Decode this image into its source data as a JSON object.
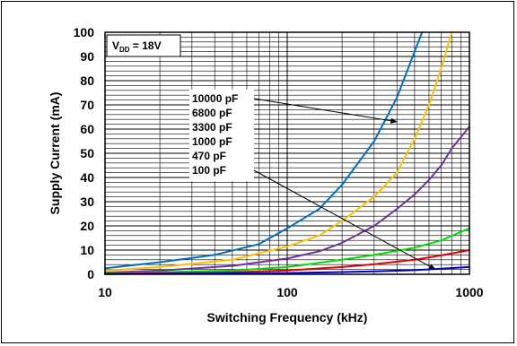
{
  "chart_data": {
    "type": "line",
    "title": "",
    "xlabel": "Switching Frequency (kHz)",
    "ylabel": "Supply Current (mA)",
    "xscale": "log",
    "xlim": [
      10,
      1000
    ],
    "ylim": [
      0,
      100
    ],
    "x_tick_labels": [
      "10",
      "100",
      "1000"
    ],
    "y_tick_labels": [
      "0",
      "10",
      "20",
      "30",
      "40",
      "50",
      "60",
      "70",
      "80",
      "90",
      "100"
    ],
    "grid": true,
    "annotation_text": "V_DD = 18V",
    "annotation_main": "V",
    "annotation_sub": "DD",
    "annotation_rest": " = 18V",
    "legend_placement": "inside, center-left",
    "legend": [
      "10000 pF",
      "6800 pF",
      "3300 pF",
      "1000 pF",
      "470 pF",
      "100 pF"
    ],
    "series": [
      {
        "name": "10000 pF",
        "color": "#0070c0",
        "x": [
          10,
          20,
          40,
          70,
          100,
          150,
          200,
          300,
          400,
          500,
          550
        ],
        "y": [
          2.5,
          5,
          8,
          12.5,
          19,
          27,
          37,
          55,
          73,
          92,
          100
        ]
      },
      {
        "name": "6800 pF",
        "color": "#ffc000",
        "x": [
          10,
          20,
          50,
          100,
          150,
          200,
          300,
          400,
          500,
          600,
          700,
          800
        ],
        "y": [
          1.5,
          3,
          6,
          11.5,
          16,
          22,
          32,
          42,
          56,
          70,
          85,
          100
        ]
      },
      {
        "name": "3300 pF",
        "color": "#7030a0",
        "x": [
          10,
          20,
          50,
          100,
          150,
          200,
          300,
          400,
          500,
          600,
          700,
          800,
          1000
        ],
        "y": [
          0.7,
          1.5,
          3.5,
          6.5,
          9.5,
          13,
          20,
          27,
          33,
          39,
          45,
          52,
          61
        ]
      },
      {
        "name": "1000 pF",
        "color": "#00dd00",
        "x": [
          10,
          50,
          100,
          200,
          300,
          500,
          700,
          1000
        ],
        "y": [
          0.4,
          1.5,
          3,
          6,
          8,
          11,
          14,
          19
        ]
      },
      {
        "name": "470 pF",
        "color": "#e00000",
        "x": [
          10,
          50,
          100,
          200,
          300,
          500,
          700,
          1000
        ],
        "y": [
          0.2,
          0.8,
          1.6,
          3,
          4.2,
          6,
          7.8,
          10
        ]
      },
      {
        "name": "100 pF",
        "color": "#0000cc",
        "x": [
          10,
          100,
          300,
          500,
          700,
          1000
        ],
        "y": [
          0.1,
          0.5,
          1.2,
          1.7,
          2.3,
          3
        ]
      }
    ],
    "annotation_arrows": [
      {
        "from_legend": "10000 pF",
        "to_series": "10000 pF",
        "to": [
          400,
          63
        ]
      },
      {
        "from_legend": "100 pF",
        "to_series": "100 pF",
        "to": [
          650,
          2
        ]
      }
    ]
  }
}
